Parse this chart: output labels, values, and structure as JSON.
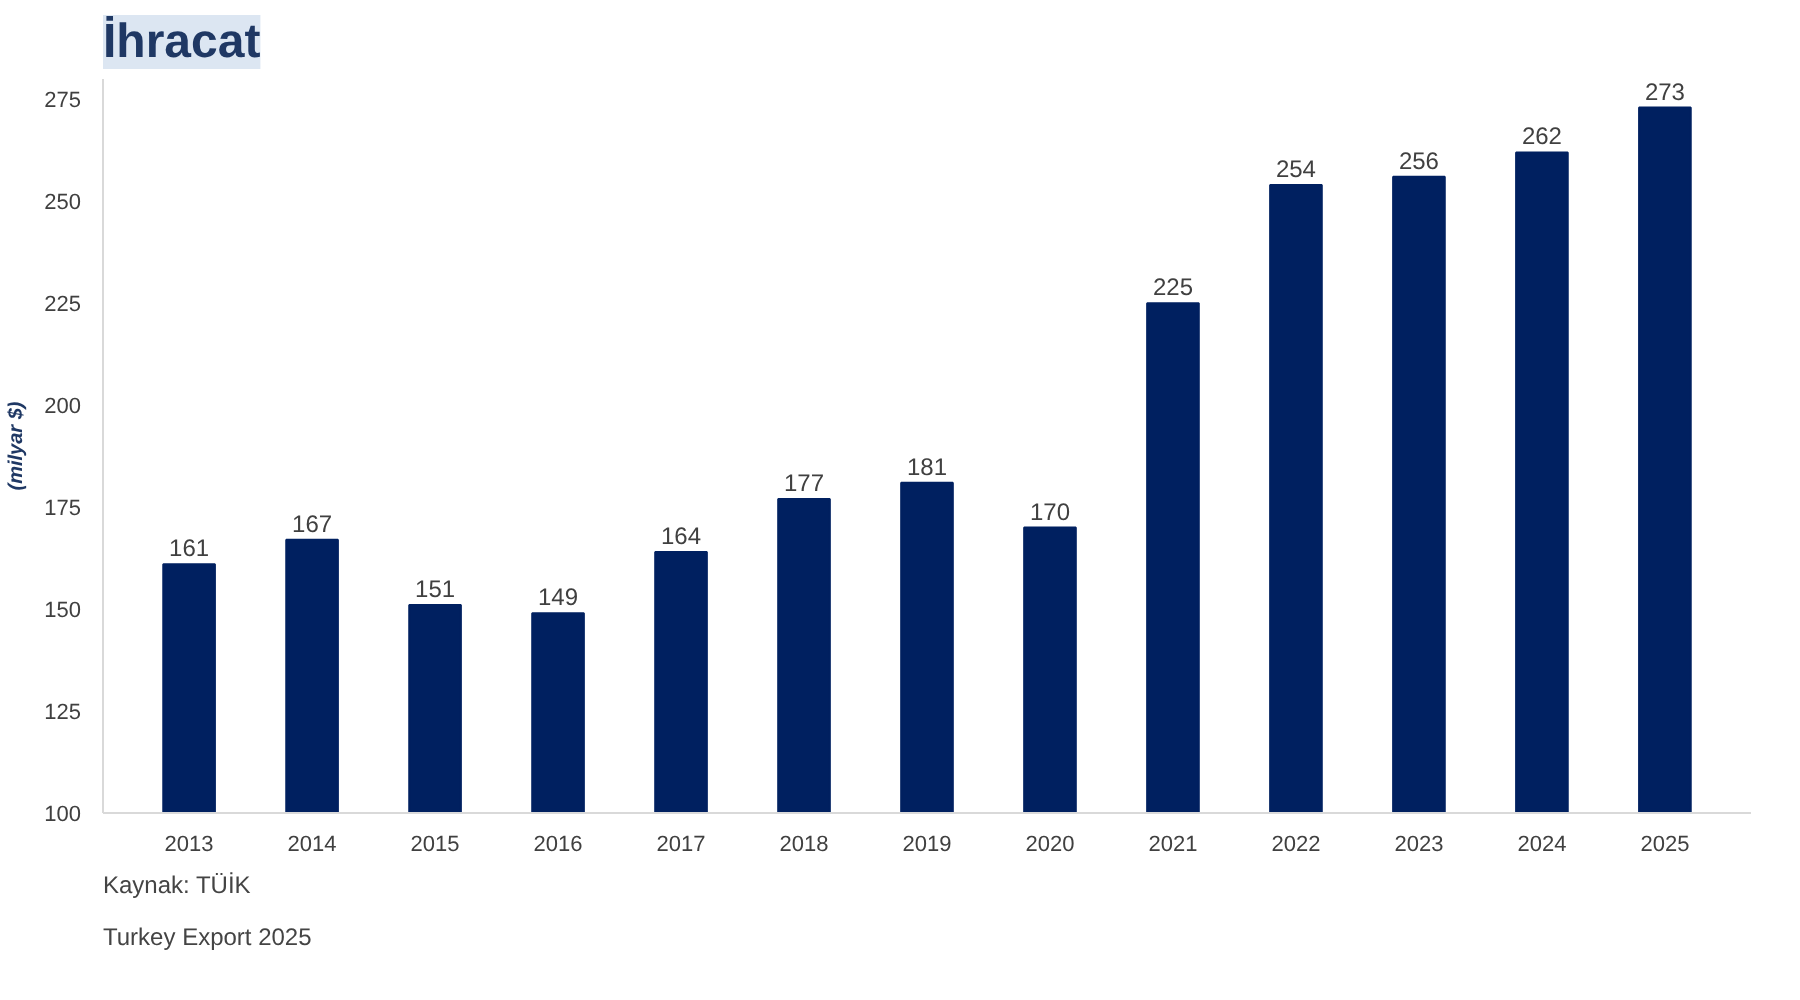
{
  "chart_data": {
    "type": "bar",
    "title": "İhracat",
    "ylabel": "(milyar $)",
    "categories": [
      "2013",
      "2014",
      "2015",
      "2016",
      "2017",
      "2018",
      "2019",
      "2020",
      "2021",
      "2022",
      "2023",
      "2024",
      "2025"
    ],
    "values": [
      161,
      167,
      151,
      149,
      164,
      177,
      181,
      170,
      225,
      254,
      256,
      262,
      273
    ],
    "color": "#002060",
    "ylim": [
      100,
      280
    ],
    "yticks": [
      100,
      125,
      150,
      175,
      200,
      225,
      250,
      275
    ],
    "data_labels": true,
    "grid": false,
    "annotations": [
      "Kaynak: TÜİK",
      "Turkey Export 2025"
    ]
  }
}
